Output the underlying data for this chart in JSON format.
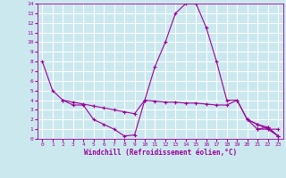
{
  "title": "",
  "xlabel": "Windchill (Refroidissement éolien,°C)",
  "background_color": "#cce8ef",
  "grid_color": "#ffffff",
  "line_color": "#990099",
  "xlim": [
    -0.5,
    23.5
  ],
  "ylim": [
    0,
    14
  ],
  "xticks": [
    0,
    1,
    2,
    3,
    4,
    5,
    6,
    7,
    8,
    9,
    10,
    11,
    12,
    13,
    14,
    15,
    16,
    17,
    18,
    19,
    20,
    21,
    22,
    23
  ],
  "yticks": [
    0,
    1,
    2,
    3,
    4,
    5,
    6,
    7,
    8,
    9,
    10,
    11,
    12,
    13,
    14
  ],
  "series": [
    [
      8,
      5,
      4,
      3.5,
      3.5,
      2,
      1.5,
      1,
      0.3,
      0.4,
      4,
      7.5,
      10,
      13,
      14,
      14,
      11.5,
      8,
      4,
      4,
      2,
      1,
      1,
      0.3
    ],
    [
      null,
      null,
      4,
      3.8,
      3.6,
      3.4,
      3.2,
      3.0,
      2.8,
      2.6,
      4,
      3.9,
      3.8,
      3.8,
      3.7,
      3.7,
      3.6,
      3.5,
      3.5,
      4.0,
      2.0,
      1.5,
      1.0,
      1.0
    ],
    [
      null,
      null,
      null,
      null,
      null,
      null,
      null,
      null,
      null,
      null,
      null,
      null,
      null,
      null,
      null,
      null,
      null,
      null,
      null,
      null,
      2.0,
      1.5,
      1.2,
      0.3
    ],
    [
      null,
      null,
      null,
      null,
      null,
      null,
      null,
      null,
      null,
      null,
      null,
      null,
      null,
      null,
      null,
      null,
      null,
      null,
      null,
      null,
      null,
      1.0,
      1.2,
      0.3
    ]
  ]
}
